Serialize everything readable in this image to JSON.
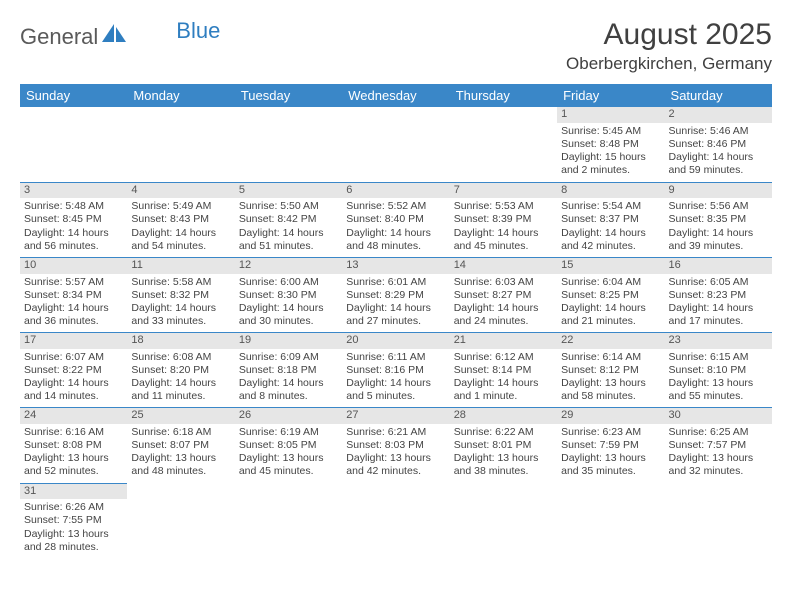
{
  "brand": {
    "part1": "General",
    "part2": "Blue"
  },
  "title": "August 2025",
  "location": "Oberbergkirchen, Germany",
  "colors": {
    "header_bg": "#3a87c8",
    "header_fg": "#ffffff",
    "daynum_bg": "#e6e6e6",
    "rule": "#3a87c8",
    "text": "#404040",
    "logo_accent": "#2f7ec0"
  },
  "weekdays": [
    "Sunday",
    "Monday",
    "Tuesday",
    "Wednesday",
    "Thursday",
    "Friday",
    "Saturday"
  ],
  "weeks": [
    [
      {
        "n": "",
        "sr": "",
        "ss": "",
        "dl": ""
      },
      {
        "n": "",
        "sr": "",
        "ss": "",
        "dl": ""
      },
      {
        "n": "",
        "sr": "",
        "ss": "",
        "dl": ""
      },
      {
        "n": "",
        "sr": "",
        "ss": "",
        "dl": ""
      },
      {
        "n": "",
        "sr": "",
        "ss": "",
        "dl": ""
      },
      {
        "n": "1",
        "sr": "Sunrise: 5:45 AM",
        "ss": "Sunset: 8:48 PM",
        "dl": "Daylight: 15 hours and 2 minutes."
      },
      {
        "n": "2",
        "sr": "Sunrise: 5:46 AM",
        "ss": "Sunset: 8:46 PM",
        "dl": "Daylight: 14 hours and 59 minutes."
      }
    ],
    [
      {
        "n": "3",
        "sr": "Sunrise: 5:48 AM",
        "ss": "Sunset: 8:45 PM",
        "dl": "Daylight: 14 hours and 56 minutes."
      },
      {
        "n": "4",
        "sr": "Sunrise: 5:49 AM",
        "ss": "Sunset: 8:43 PM",
        "dl": "Daylight: 14 hours and 54 minutes."
      },
      {
        "n": "5",
        "sr": "Sunrise: 5:50 AM",
        "ss": "Sunset: 8:42 PM",
        "dl": "Daylight: 14 hours and 51 minutes."
      },
      {
        "n": "6",
        "sr": "Sunrise: 5:52 AM",
        "ss": "Sunset: 8:40 PM",
        "dl": "Daylight: 14 hours and 48 minutes."
      },
      {
        "n": "7",
        "sr": "Sunrise: 5:53 AM",
        "ss": "Sunset: 8:39 PM",
        "dl": "Daylight: 14 hours and 45 minutes."
      },
      {
        "n": "8",
        "sr": "Sunrise: 5:54 AM",
        "ss": "Sunset: 8:37 PM",
        "dl": "Daylight: 14 hours and 42 minutes."
      },
      {
        "n": "9",
        "sr": "Sunrise: 5:56 AM",
        "ss": "Sunset: 8:35 PM",
        "dl": "Daylight: 14 hours and 39 minutes."
      }
    ],
    [
      {
        "n": "10",
        "sr": "Sunrise: 5:57 AM",
        "ss": "Sunset: 8:34 PM",
        "dl": "Daylight: 14 hours and 36 minutes."
      },
      {
        "n": "11",
        "sr": "Sunrise: 5:58 AM",
        "ss": "Sunset: 8:32 PM",
        "dl": "Daylight: 14 hours and 33 minutes."
      },
      {
        "n": "12",
        "sr": "Sunrise: 6:00 AM",
        "ss": "Sunset: 8:30 PM",
        "dl": "Daylight: 14 hours and 30 minutes."
      },
      {
        "n": "13",
        "sr": "Sunrise: 6:01 AM",
        "ss": "Sunset: 8:29 PM",
        "dl": "Daylight: 14 hours and 27 minutes."
      },
      {
        "n": "14",
        "sr": "Sunrise: 6:03 AM",
        "ss": "Sunset: 8:27 PM",
        "dl": "Daylight: 14 hours and 24 minutes."
      },
      {
        "n": "15",
        "sr": "Sunrise: 6:04 AM",
        "ss": "Sunset: 8:25 PM",
        "dl": "Daylight: 14 hours and 21 minutes."
      },
      {
        "n": "16",
        "sr": "Sunrise: 6:05 AM",
        "ss": "Sunset: 8:23 PM",
        "dl": "Daylight: 14 hours and 17 minutes."
      }
    ],
    [
      {
        "n": "17",
        "sr": "Sunrise: 6:07 AM",
        "ss": "Sunset: 8:22 PM",
        "dl": "Daylight: 14 hours and 14 minutes."
      },
      {
        "n": "18",
        "sr": "Sunrise: 6:08 AM",
        "ss": "Sunset: 8:20 PM",
        "dl": "Daylight: 14 hours and 11 minutes."
      },
      {
        "n": "19",
        "sr": "Sunrise: 6:09 AM",
        "ss": "Sunset: 8:18 PM",
        "dl": "Daylight: 14 hours and 8 minutes."
      },
      {
        "n": "20",
        "sr": "Sunrise: 6:11 AM",
        "ss": "Sunset: 8:16 PM",
        "dl": "Daylight: 14 hours and 5 minutes."
      },
      {
        "n": "21",
        "sr": "Sunrise: 6:12 AM",
        "ss": "Sunset: 8:14 PM",
        "dl": "Daylight: 14 hours and 1 minute."
      },
      {
        "n": "22",
        "sr": "Sunrise: 6:14 AM",
        "ss": "Sunset: 8:12 PM",
        "dl": "Daylight: 13 hours and 58 minutes."
      },
      {
        "n": "23",
        "sr": "Sunrise: 6:15 AM",
        "ss": "Sunset: 8:10 PM",
        "dl": "Daylight: 13 hours and 55 minutes."
      }
    ],
    [
      {
        "n": "24",
        "sr": "Sunrise: 6:16 AM",
        "ss": "Sunset: 8:08 PM",
        "dl": "Daylight: 13 hours and 52 minutes."
      },
      {
        "n": "25",
        "sr": "Sunrise: 6:18 AM",
        "ss": "Sunset: 8:07 PM",
        "dl": "Daylight: 13 hours and 48 minutes."
      },
      {
        "n": "26",
        "sr": "Sunrise: 6:19 AM",
        "ss": "Sunset: 8:05 PM",
        "dl": "Daylight: 13 hours and 45 minutes."
      },
      {
        "n": "27",
        "sr": "Sunrise: 6:21 AM",
        "ss": "Sunset: 8:03 PM",
        "dl": "Daylight: 13 hours and 42 minutes."
      },
      {
        "n": "28",
        "sr": "Sunrise: 6:22 AM",
        "ss": "Sunset: 8:01 PM",
        "dl": "Daylight: 13 hours and 38 minutes."
      },
      {
        "n": "29",
        "sr": "Sunrise: 6:23 AM",
        "ss": "Sunset: 7:59 PM",
        "dl": "Daylight: 13 hours and 35 minutes."
      },
      {
        "n": "30",
        "sr": "Sunrise: 6:25 AM",
        "ss": "Sunset: 7:57 PM",
        "dl": "Daylight: 13 hours and 32 minutes."
      }
    ],
    [
      {
        "n": "31",
        "sr": "Sunrise: 6:26 AM",
        "ss": "Sunset: 7:55 PM",
        "dl": "Daylight: 13 hours and 28 minutes."
      },
      {
        "n": "",
        "sr": "",
        "ss": "",
        "dl": ""
      },
      {
        "n": "",
        "sr": "",
        "ss": "",
        "dl": ""
      },
      {
        "n": "",
        "sr": "",
        "ss": "",
        "dl": ""
      },
      {
        "n": "",
        "sr": "",
        "ss": "",
        "dl": ""
      },
      {
        "n": "",
        "sr": "",
        "ss": "",
        "dl": ""
      },
      {
        "n": "",
        "sr": "",
        "ss": "",
        "dl": ""
      }
    ]
  ]
}
